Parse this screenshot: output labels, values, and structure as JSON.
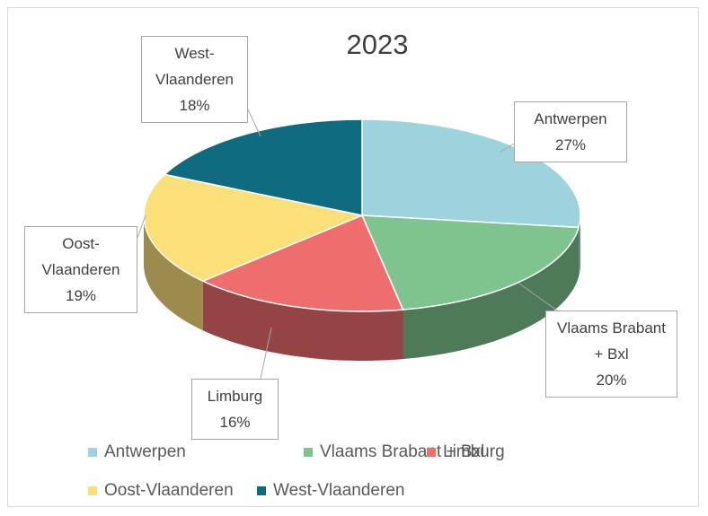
{
  "chart_data": {
    "type": "pie",
    "title": "2023",
    "categories": [
      "Antwerpen",
      "Vlaams Brabant + Bxl",
      "Limburg",
      "Oost-Vlaanderen",
      "West-Vlaanderen"
    ],
    "values": [
      27,
      20,
      16,
      19,
      18
    ],
    "value_labels": [
      "27%",
      "20%",
      "16%",
      "19%",
      "18%"
    ],
    "colors": [
      "#9dd3dc",
      "#7fc48f",
      "#ee6e6e",
      "#fbe07a",
      "#0e6b80"
    ],
    "legend": "bottom",
    "style": "3d"
  }
}
